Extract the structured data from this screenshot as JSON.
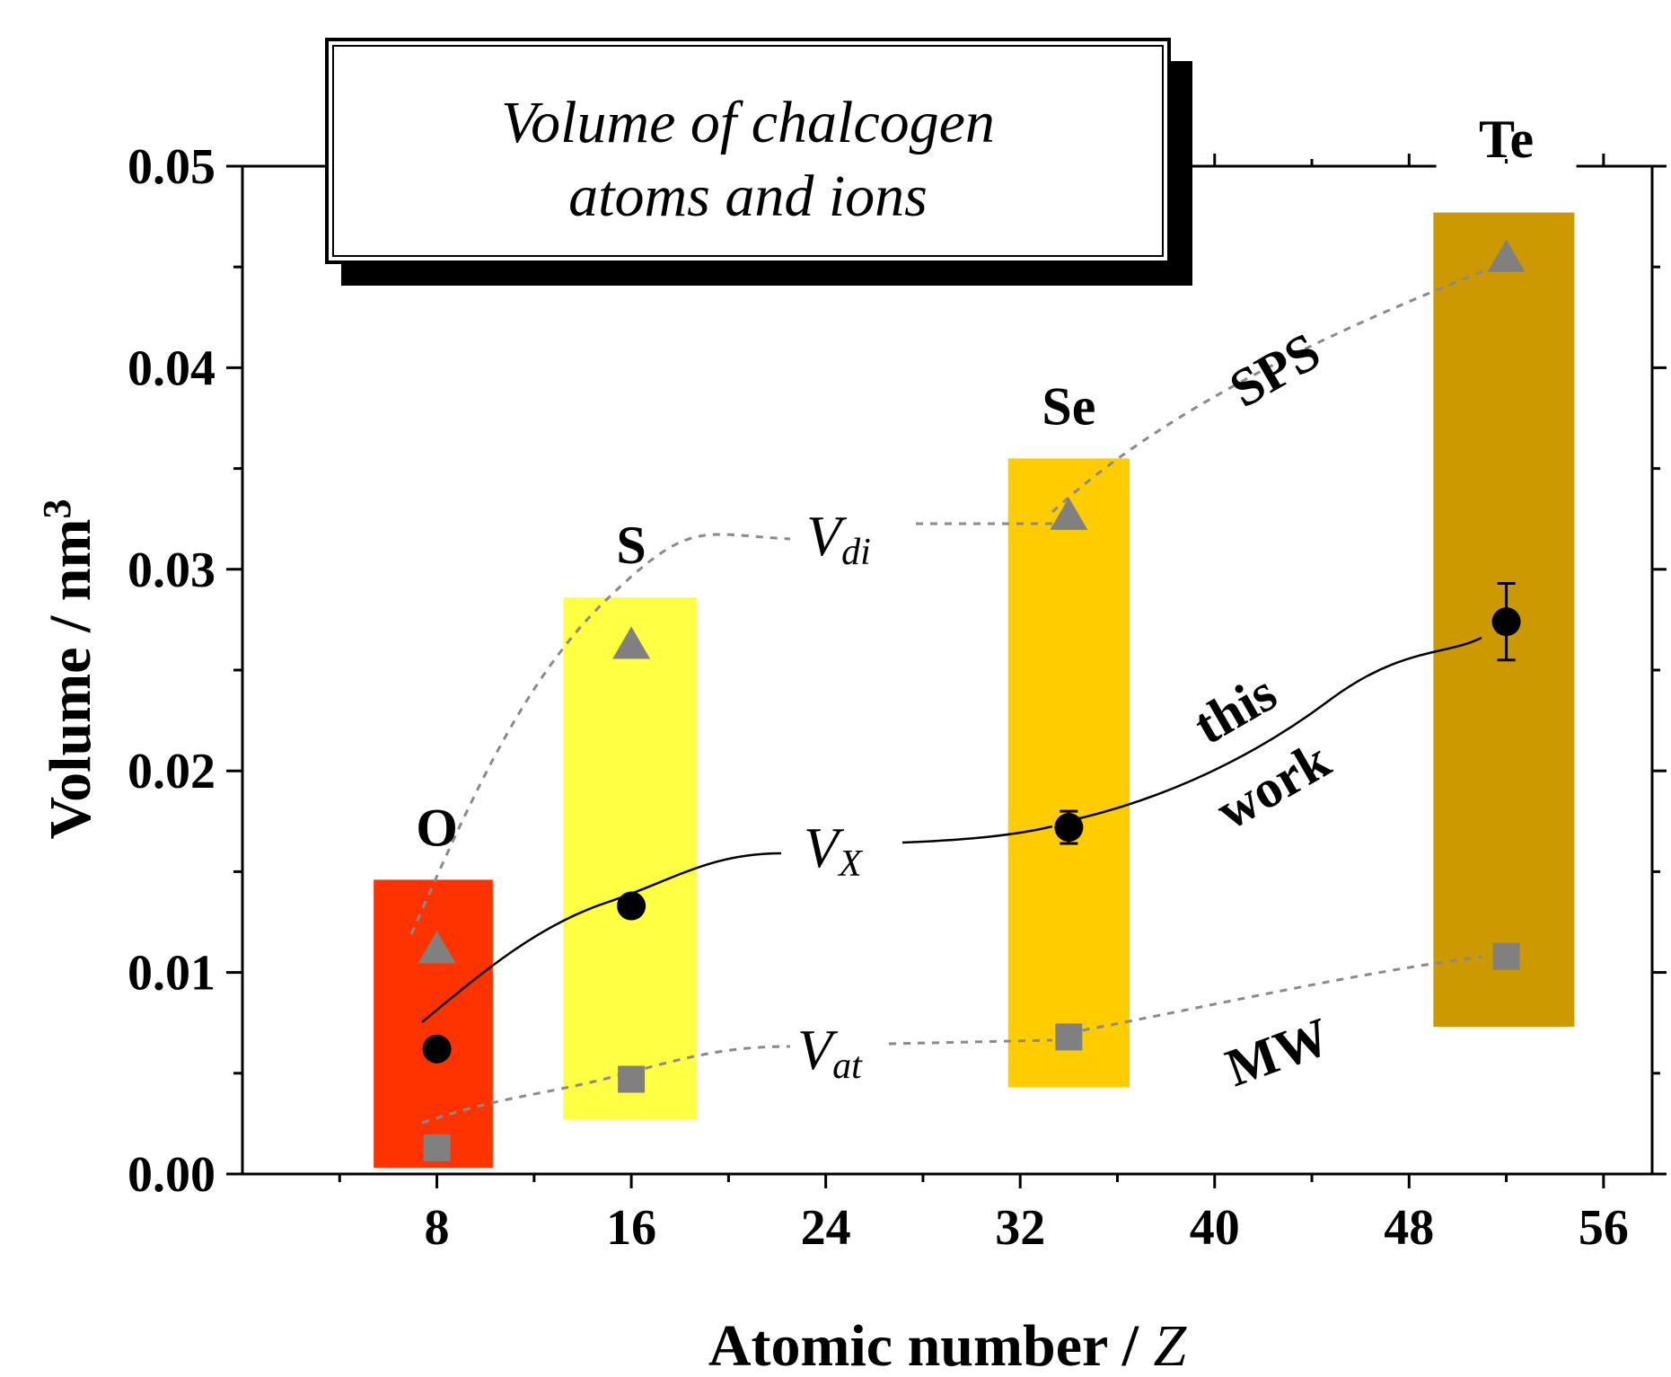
{
  "chart_data": {
    "type": "scatter",
    "title": "Volume of chalcogen atoms and ions",
    "title_lines": [
      "Volume of chalcogen",
      "atoms and ions"
    ],
    "xlabel_main": "Atomic number / ",
    "xlabel_var": "Z",
    "ylabel_main": "Volume / nm",
    "ylabel_sup": "3",
    "xlim": [
      0,
      58
    ],
    "ylim": [
      0,
      0.05
    ],
    "xticks": [
      8,
      16,
      24,
      32,
      40,
      48,
      56
    ],
    "xtick_labels": [
      "8",
      "16",
      "24",
      "32",
      "40",
      "48",
      "56"
    ],
    "yticks": [
      0,
      0.01,
      0.02,
      0.03,
      0.04,
      0.05
    ],
    "ytick_labels": [
      "0.00",
      "0.01",
      "0.02",
      "0.03",
      "0.04",
      "0.05"
    ],
    "elements": [
      {
        "symbol": "O",
        "z": 8,
        "color": "#ff3300",
        "band": [
          5.4,
          10.3
        ],
        "range": [
          0.0003,
          0.0146
        ]
      },
      {
        "symbol": "S",
        "z": 16,
        "color": "#ffff44",
        "band": [
          13.2,
          18.7
        ],
        "range": [
          0.0027,
          0.0286
        ]
      },
      {
        "symbol": "Se",
        "z": 34,
        "color": "#ffcc00",
        "band": [
          31.5,
          36.5
        ],
        "range": [
          0.0043,
          0.0355
        ]
      },
      {
        "symbol": "Te",
        "z": 52,
        "color": "#cc9900",
        "band": [
          49.0,
          54.8
        ],
        "range": [
          0.0073,
          0.0477
        ]
      }
    ],
    "series": [
      {
        "name": "V_di",
        "group_label": "SPS",
        "marker": "triangle",
        "color": "#808080",
        "x": [
          8,
          16,
          34,
          52
        ],
        "y": [
          0.0111,
          0.0262,
          0.0326,
          0.0454
        ]
      },
      {
        "name": "V_X",
        "group_label": "this work",
        "marker": "circle",
        "color": "#000000",
        "x": [
          8,
          16,
          34,
          52
        ],
        "y": [
          0.0062,
          0.0133,
          0.0172,
          0.0274
        ],
        "yerr": [
          0.0004,
          0.0005,
          0.0008,
          0.0019
        ]
      },
      {
        "name": "V_at",
        "group_label": "MW",
        "marker": "square",
        "color": "#808080",
        "x": [
          8,
          16,
          34,
          52
        ],
        "y": [
          0.0013,
          0.0047,
          0.0068,
          0.0108
        ]
      }
    ],
    "annotations": {
      "vdi_base": "V",
      "vdi_sub": "di",
      "vx_base": "V",
      "vx_sub": "X",
      "vat_base": "V",
      "vat_sub": "at",
      "sps": "SPS",
      "this_line1": "this",
      "this_line2": "work",
      "mw": "MW"
    }
  }
}
